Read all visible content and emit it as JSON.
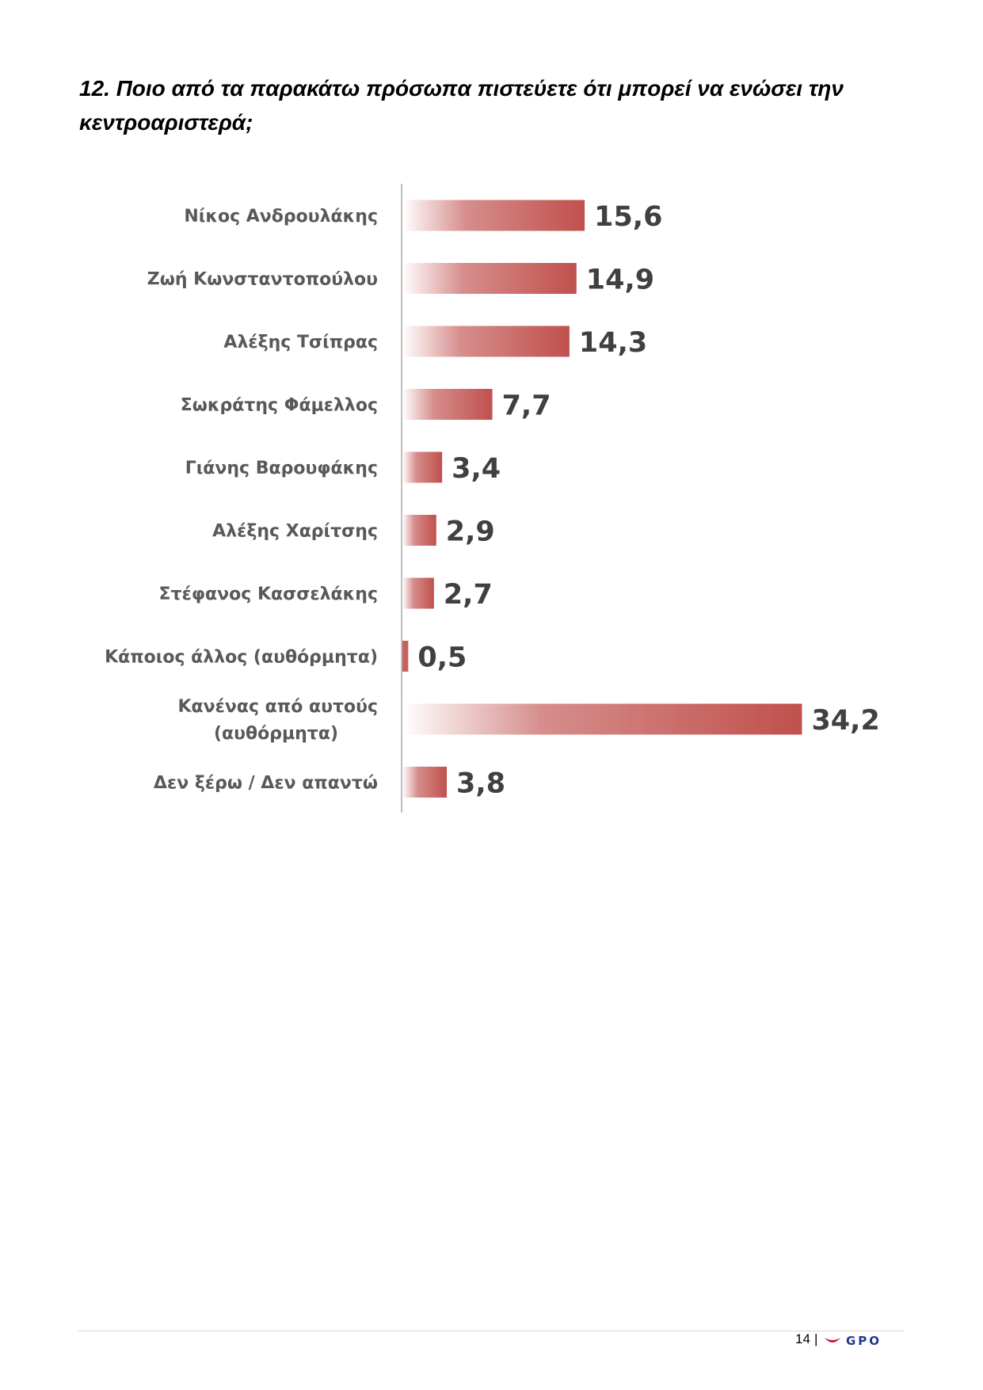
{
  "question": "12. Ποιο από τα παρακάτω πρόσωπα πιστεύετε ότι μπορεί να ενώσει την κεντροαριστερά;",
  "chart_data": {
    "type": "bar",
    "orientation": "horizontal",
    "categories": [
      "Νίκος Ανδρουλάκης",
      "Ζωή Κωνσταντοπούλου",
      "Αλέξης Τσίπρας",
      "Σωκράτης Φάμελλος",
      "Γιάνης Βαρουφάκης",
      "Αλέξης Χαρίτσης",
      "Στέφανος Κασσελάκης",
      "Κάποιος άλλος (αυθόρμητα)",
      "Κανένας από αυτούς (αυθόρμητα)",
      "Δεν ξέρω / Δεν απαντώ"
    ],
    "values": [
      15.6,
      14.9,
      14.3,
      7.7,
      3.4,
      2.9,
      2.7,
      0.5,
      34.2,
      3.8
    ],
    "value_labels": [
      "15,6",
      "14,9",
      "14,3",
      "7,7",
      "3,4",
      "2,9",
      "2,7",
      "0,5",
      "34,2",
      "3,8"
    ],
    "bar_color": "#c0504d",
    "grid": false,
    "legend": "none"
  },
  "footer": {
    "page_number": "14",
    "separator": "|",
    "logo_text": "GPO"
  },
  "colors": {
    "logo_blue": "#1f3a8a",
    "logo_red": "#c8102e"
  }
}
